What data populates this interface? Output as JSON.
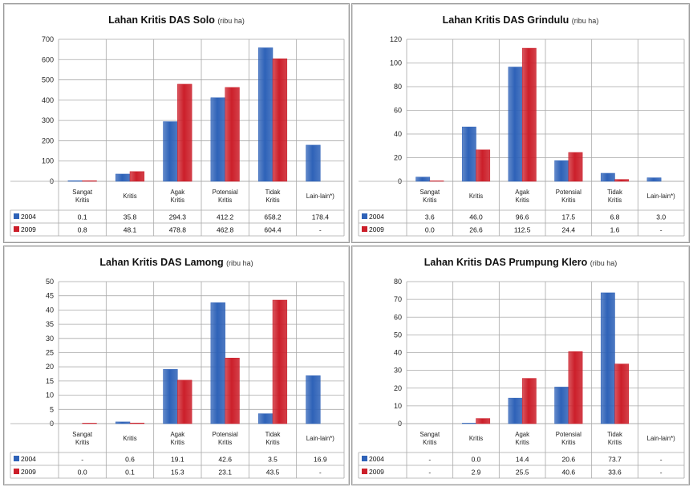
{
  "colors": {
    "s2004": "#2e62b8",
    "s2009": "#cc1f2a",
    "grid": "#a9a9a9",
    "plotbg": "#ffffff"
  },
  "chart_data": [
    {
      "type": "bar",
      "title": "Lahan Kritis DAS Solo",
      "unit": "(ribu ha)",
      "categories": [
        "Sangat Kritis",
        "Kritis",
        "Agak Kritis",
        "Potensial Kritis",
        "Tidak Kritis",
        "Lain-lain*)"
      ],
      "ylim": [
        0,
        700
      ],
      "yticks": [
        0,
        100,
        200,
        300,
        400,
        500,
        600,
        700
      ],
      "series": [
        {
          "name": "2004",
          "values": [
            0.1,
            35.8,
            294.3,
            412.2,
            658.2,
            178.4
          ],
          "labels": [
            "0.1",
            "35.8",
            "294.3",
            "412.2",
            "658.2",
            "178.4"
          ]
        },
        {
          "name": "2009",
          "values": [
            0.8,
            48.1,
            478.8,
            462.8,
            604.4,
            null
          ],
          "labels": [
            "0.8",
            "48.1",
            "478.8",
            "462.8",
            "604.4",
            "-"
          ]
        }
      ]
    },
    {
      "type": "bar",
      "title": "Lahan Kritis DAS Grindulu",
      "unit": "(ribu ha)",
      "categories": [
        "Sangat Kritis",
        "Kritis",
        "Agak Kritis",
        "Potensial Kritis",
        "Tidak Kritis",
        "Lain-lain*)"
      ],
      "ylim": [
        0,
        120
      ],
      "yticks": [
        0,
        20,
        40,
        60,
        80,
        100,
        120
      ],
      "series": [
        {
          "name": "2004",
          "values": [
            3.6,
            46.0,
            96.6,
            17.5,
            6.8,
            3.0
          ],
          "labels": [
            "3.6",
            "46.0",
            "96.6",
            "17.5",
            "6.8",
            "3.0"
          ]
        },
        {
          "name": "2009",
          "values": [
            0.0,
            26.6,
            112.5,
            24.4,
            1.6,
            null
          ],
          "labels": [
            "0.0",
            "26.6",
            "112.5",
            "24.4",
            "1.6",
            "-"
          ]
        }
      ]
    },
    {
      "type": "bar",
      "title": "Lahan Kritis DAS Lamong",
      "unit": "(ribu ha)",
      "categories": [
        "Sangat Kritis",
        "Kritis",
        "Agak Kritis",
        "Potensial Kritis",
        "Tidak Kritis",
        "Lain-lain*)"
      ],
      "ylim": [
        0,
        50
      ],
      "yticks": [
        0,
        5,
        10,
        15,
        20,
        25,
        30,
        35,
        40,
        45,
        50
      ],
      "series": [
        {
          "name": "2004",
          "values": [
            null,
            0.6,
            19.1,
            42.6,
            3.5,
            16.9
          ],
          "labels": [
            "-",
            "0.6",
            "19.1",
            "42.6",
            "3.5",
            "16.9"
          ]
        },
        {
          "name": "2009",
          "values": [
            0.0,
            0.1,
            15.3,
            23.1,
            43.5,
            null
          ],
          "labels": [
            "0.0",
            "0.1",
            "15.3",
            "23.1",
            "43.5",
            "-"
          ]
        }
      ]
    },
    {
      "type": "bar",
      "title": "Lahan Kritis DAS Prumpung Klero",
      "unit": "(ribu ha)",
      "categories": [
        "Sangat Kritis",
        "Kritis",
        "Agak Kritis",
        "Potensial Kritis",
        "Tidak Kritis",
        "Lain-lain*)"
      ],
      "ylim": [
        0,
        80
      ],
      "yticks": [
        0,
        10,
        20,
        30,
        40,
        50,
        60,
        70,
        80
      ],
      "series": [
        {
          "name": "2004",
          "values": [
            null,
            0.0,
            14.4,
            20.6,
            73.7,
            null
          ],
          "labels": [
            "-",
            "0.0",
            "14.4",
            "20.6",
            "73.7",
            "-"
          ]
        },
        {
          "name": "2009",
          "values": [
            null,
            2.9,
            25.5,
            40.6,
            33.6,
            null
          ],
          "labels": [
            "-",
            "2.9",
            "25.5",
            "40.6",
            "33.6",
            "-"
          ]
        }
      ]
    }
  ]
}
